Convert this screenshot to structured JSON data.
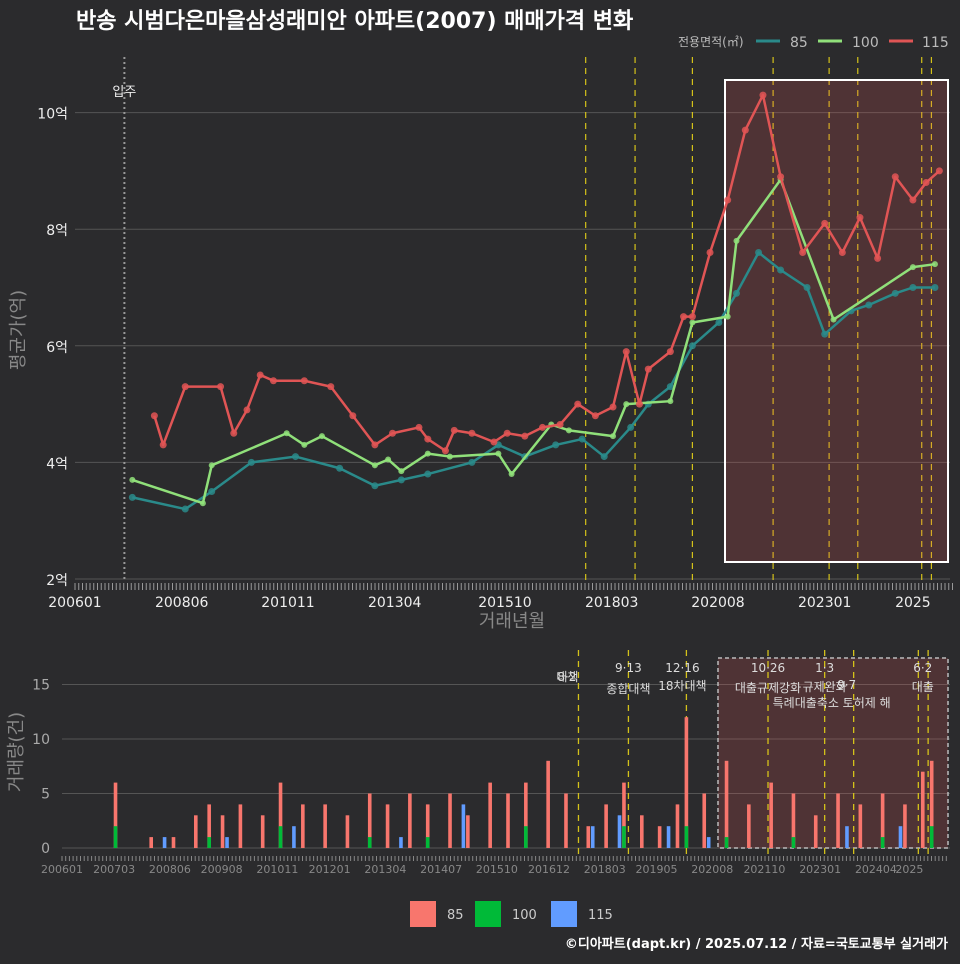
{
  "title": "반송 시범다은마을삼성래미안 아파트(2007) 매매가격 변화",
  "legend_title": "전용면적(㎡)",
  "colors": {
    "s85": "#2a8a8a",
    "s100": "#90e07a",
    "s115": "#e05555",
    "bar85": "#f8766d",
    "bar100": "#00ba38",
    "bar115": "#619cff",
    "vline": "#d4c21a"
  },
  "footer": "©디아파트(dapt.kr) / 2025.07.12 / 자료=국토교통부 실거래가",
  "chart_data": [
    {
      "type": "line",
      "title": "반송 시범다은마을삼성래미안 아파트(2007) 매매가격 변화",
      "xlabel": "거래년월",
      "ylabel": "평균가(억)",
      "x_ticks": [
        "200601",
        "200806",
        "201011",
        "201304",
        "201510",
        "201803",
        "202008",
        "202301",
        "2025"
      ],
      "y_ticks": [
        "2억",
        "4억",
        "6억",
        "8억",
        "10억"
      ],
      "ylim": [
        2,
        10.9
      ],
      "annotation": "입주",
      "series": [
        {
          "name": "85",
          "x": [
            2007.3,
            2008.5,
            2009.1,
            2010.0,
            2011.0,
            2012.0,
            2012.8,
            2013.4,
            2014.0,
            2015.0,
            2015.6,
            2016.2,
            2016.9,
            2017.5,
            2018.0,
            2018.6,
            2019.0,
            2019.5,
            2020.0,
            2020.6,
            2021.0,
            2021.5,
            2022.0,
            2022.6,
            2023.0,
            2023.6,
            2024.0,
            2024.6,
            2025.0,
            2025.5
          ],
          "values": [
            3.4,
            3.2,
            3.5,
            4.0,
            4.1,
            3.9,
            3.6,
            3.7,
            3.8,
            4.0,
            4.3,
            4.1,
            4.3,
            4.4,
            4.1,
            4.6,
            5.0,
            5.3,
            6.0,
            6.4,
            6.9,
            7.6,
            7.3,
            7.0,
            6.2,
            6.6,
            6.7,
            6.9,
            7.0,
            7.0
          ]
        },
        {
          "name": "100",
          "x": [
            2007.3,
            2008.9,
            2009.1,
            2010.8,
            2011.2,
            2011.6,
            2012.8,
            2013.1,
            2013.4,
            2014.0,
            2014.5,
            2015.6,
            2015.9,
            2016.8,
            2017.2,
            2018.2,
            2018.5,
            2019.5,
            2020.0,
            2020.8,
            2021.0,
            2022.0,
            2023.2,
            2025.0,
            2025.5
          ],
          "values": [
            3.7,
            3.3,
            3.95,
            4.5,
            4.3,
            4.45,
            3.95,
            4.05,
            3.85,
            4.15,
            4.1,
            4.15,
            3.8,
            4.65,
            4.55,
            4.45,
            5.0,
            5.05,
            6.4,
            6.5,
            7.8,
            8.85,
            6.45,
            7.35,
            7.4
          ]
        },
        {
          "name": "115",
          "x": [
            2007.8,
            2008.0,
            2008.5,
            2009.3,
            2009.6,
            2009.9,
            2010.2,
            2010.5,
            2011.2,
            2011.8,
            2012.3,
            2012.8,
            2013.2,
            2013.8,
            2014.0,
            2014.4,
            2014.6,
            2015.0,
            2015.5,
            2015.8,
            2016.2,
            2016.6,
            2017.0,
            2017.4,
            2017.8,
            2018.2,
            2018.5,
            2018.8,
            2019.0,
            2019.5,
            2019.8,
            2020.0,
            2020.4,
            2020.8,
            2021.2,
            2021.6,
            2022.0,
            2022.5,
            2023.0,
            2023.4,
            2023.8,
            2024.2,
            2024.6,
            2025.0,
            2025.3,
            2025.6
          ],
          "values": [
            4.8,
            4.3,
            5.3,
            5.3,
            4.5,
            4.9,
            5.5,
            5.4,
            5.4,
            5.3,
            4.8,
            4.3,
            4.5,
            4.6,
            4.4,
            4.2,
            4.55,
            4.5,
            4.35,
            4.5,
            4.45,
            4.6,
            4.65,
            5.0,
            4.8,
            4.95,
            5.9,
            5.0,
            5.6,
            5.9,
            6.5,
            6.5,
            7.6,
            8.5,
            9.7,
            10.3,
            8.9,
            7.6,
            8.1,
            7.6,
            8.2,
            7.5,
            8.9,
            8.5,
            8.8,
            9.0
          ]
        }
      ]
    },
    {
      "type": "bar",
      "ylabel": "거래량(건)",
      "x_ticks": [
        "200601",
        "200703",
        "200806",
        "200908",
        "201011",
        "201201",
        "201304",
        "201407",
        "201510",
        "201612",
        "201803",
        "201905",
        "202008",
        "202110",
        "202301",
        "202404",
        "2025"
      ],
      "y_ticks": [
        "0",
        "5",
        "10",
        "15"
      ],
      "ylim": [
        0,
        17
      ],
      "series": [
        {
          "name": "85",
          "x": [
            2007.2,
            2008.0,
            2008.5,
            2009.0,
            2009.3,
            2009.6,
            2010.0,
            2010.5,
            2010.9,
            2011.4,
            2011.9,
            2012.4,
            2012.9,
            2013.3,
            2013.8,
            2014.2,
            2014.7,
            2015.1,
            2015.6,
            2016.0,
            2016.4,
            2016.9,
            2017.3,
            2017.8,
            2018.2,
            2018.6,
            2019.0,
            2019.4,
            2019.8,
            2020.0,
            2020.4,
            2020.9,
            2021.4,
            2021.9,
            2022.4,
            2022.9,
            2023.4,
            2023.9,
            2024.4,
            2024.9,
            2025.3,
            2025.5
          ],
          "values": [
            6,
            1,
            1,
            3,
            4,
            3,
            4,
            3,
            6,
            4,
            4,
            3,
            5,
            4,
            5,
            4,
            5,
            3,
            6,
            5,
            6,
            8,
            5,
            2,
            4,
            6,
            3,
            2,
            4,
            12,
            5,
            8,
            4,
            6,
            5,
            3,
            5,
            4,
            5,
            4,
            7,
            8
          ]
        },
        {
          "name": "100",
          "x": [
            2007.2,
            2009.3,
            2010.9,
            2012.9,
            2014.2,
            2016.4,
            2018.6,
            2020.0,
            2020.9,
            2022.4,
            2024.4,
            2025.5
          ],
          "values": [
            2,
            1,
            2,
            1,
            1,
            2,
            2,
            2,
            1,
            1,
            1,
            2
          ]
        },
        {
          "name": "115",
          "x": [
            2008.3,
            2009.7,
            2011.2,
            2013.6,
            2015.0,
            2017.9,
            2018.5,
            2019.6,
            2020.5,
            2023.6,
            2024.8
          ],
          "values": [
            1,
            1,
            2,
            1,
            4,
            2,
            3,
            2,
            1,
            2,
            2
          ]
        }
      ],
      "events": [
        {
          "date": "8·2",
          "label": "대책"
        },
        {
          "date": "9·13",
          "label": "종합대책"
        },
        {
          "date": "12·16",
          "label": "18차대책"
        },
        {
          "date": "10·26",
          "label": "대출규제강화"
        },
        {
          "date": "1·3",
          "label": "규제완화"
        },
        {
          "date": "9·7",
          "label": "특례대출축소 토허제 해"
        },
        {
          "date": "6·2",
          "label": "대출"
        }
      ]
    }
  ]
}
